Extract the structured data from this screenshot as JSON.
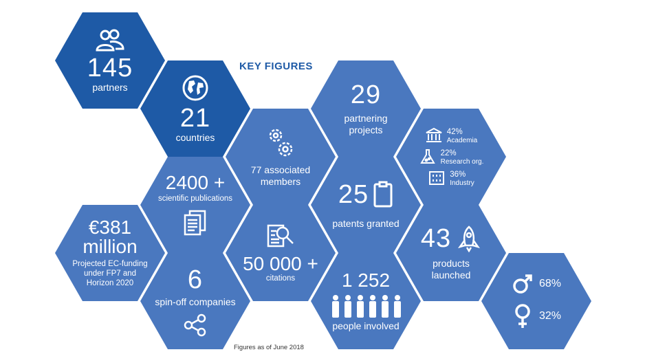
{
  "title": "KEY FIGURES",
  "footnote": "Figures as of June 2018",
  "colors": {
    "dark": "#1e5aa6",
    "mid": "#4a78bf"
  },
  "cells": {
    "partners": {
      "value": "145",
      "label": "partners",
      "icon": "people-icon"
    },
    "countries": {
      "value": "21",
      "label": "countries",
      "icon": "globe-icon"
    },
    "associated": {
      "label_line1": "77 associated",
      "label_line2": "members",
      "icon": "gears-icon"
    },
    "partnering": {
      "value": "29",
      "label_line1": "partnering",
      "label_line2": "projects"
    },
    "breakdown": {
      "items": [
        {
          "pct": "42%",
          "label": "Academia",
          "icon": "university-icon"
        },
        {
          "pct": "22%",
          "label": "Research org.",
          "icon": "flask-icon"
        },
        {
          "pct": "36%",
          "label": "Industry",
          "icon": "building-icon"
        }
      ]
    },
    "publications": {
      "value": "2400 +",
      "label": "scientific publications",
      "icon": "documents-icon"
    },
    "patents": {
      "value": "25",
      "label": "patents granted",
      "icon": "clipboard-icon"
    },
    "funding": {
      "value_line1": "€381",
      "value_line2": "million",
      "label_line1": "Projected EC-funding",
      "label_line2": "under FP7 and",
      "label_line3": "Horizon 2020"
    },
    "citations": {
      "value": "50 000 +",
      "label": "citations",
      "icon": "search-document-icon"
    },
    "products": {
      "value": "43",
      "label_line1": "products",
      "label_line2": "launched",
      "icon": "rocket-icon"
    },
    "spinoff": {
      "value": "6",
      "label": "spin-off companies",
      "icon": "share-icon"
    },
    "people": {
      "value": "1 252",
      "label": "people involved",
      "icon": "crowd-icon"
    },
    "gender": {
      "male": "68%",
      "female": "32%",
      "icons": [
        "male-symbol-icon",
        "female-symbol-icon"
      ]
    }
  }
}
